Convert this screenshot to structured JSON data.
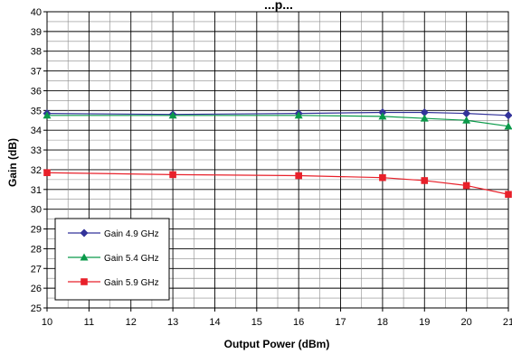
{
  "chart_data": {
    "type": "line",
    "title": "...p...",
    "xlabel": "Output Power (dBm)",
    "ylabel": "Gain (dB)",
    "x": [
      10,
      13,
      16,
      18,
      19,
      20,
      21
    ],
    "x_ticks": [
      10,
      11,
      12,
      13,
      14,
      15,
      16,
      17,
      18,
      19,
      20,
      21
    ],
    "y_ticks": [
      25,
      26,
      27,
      28,
      29,
      30,
      31,
      32,
      33,
      34,
      35,
      36,
      37,
      38,
      39,
      40
    ],
    "xlim": [
      10,
      21
    ],
    "ylim": [
      25,
      40
    ],
    "grid": true,
    "legend_position": "bottom-left",
    "series": [
      {
        "name": "Gain 4.9 GHz",
        "color": "#33339a",
        "marker": "diamond",
        "values": [
          34.85,
          34.8,
          34.85,
          34.9,
          34.9,
          34.85,
          34.75
        ]
      },
      {
        "name": "Gain 5.4 GHz",
        "color": "#0a9a4a",
        "marker": "triangle",
        "values": [
          34.75,
          34.75,
          34.75,
          34.7,
          34.6,
          34.5,
          34.2
        ]
      },
      {
        "name": "Gain 5.9 GHz",
        "color": "#e8202a",
        "marker": "square",
        "values": [
          31.85,
          31.75,
          31.7,
          31.6,
          31.45,
          31.2,
          30.75
        ]
      }
    ]
  }
}
